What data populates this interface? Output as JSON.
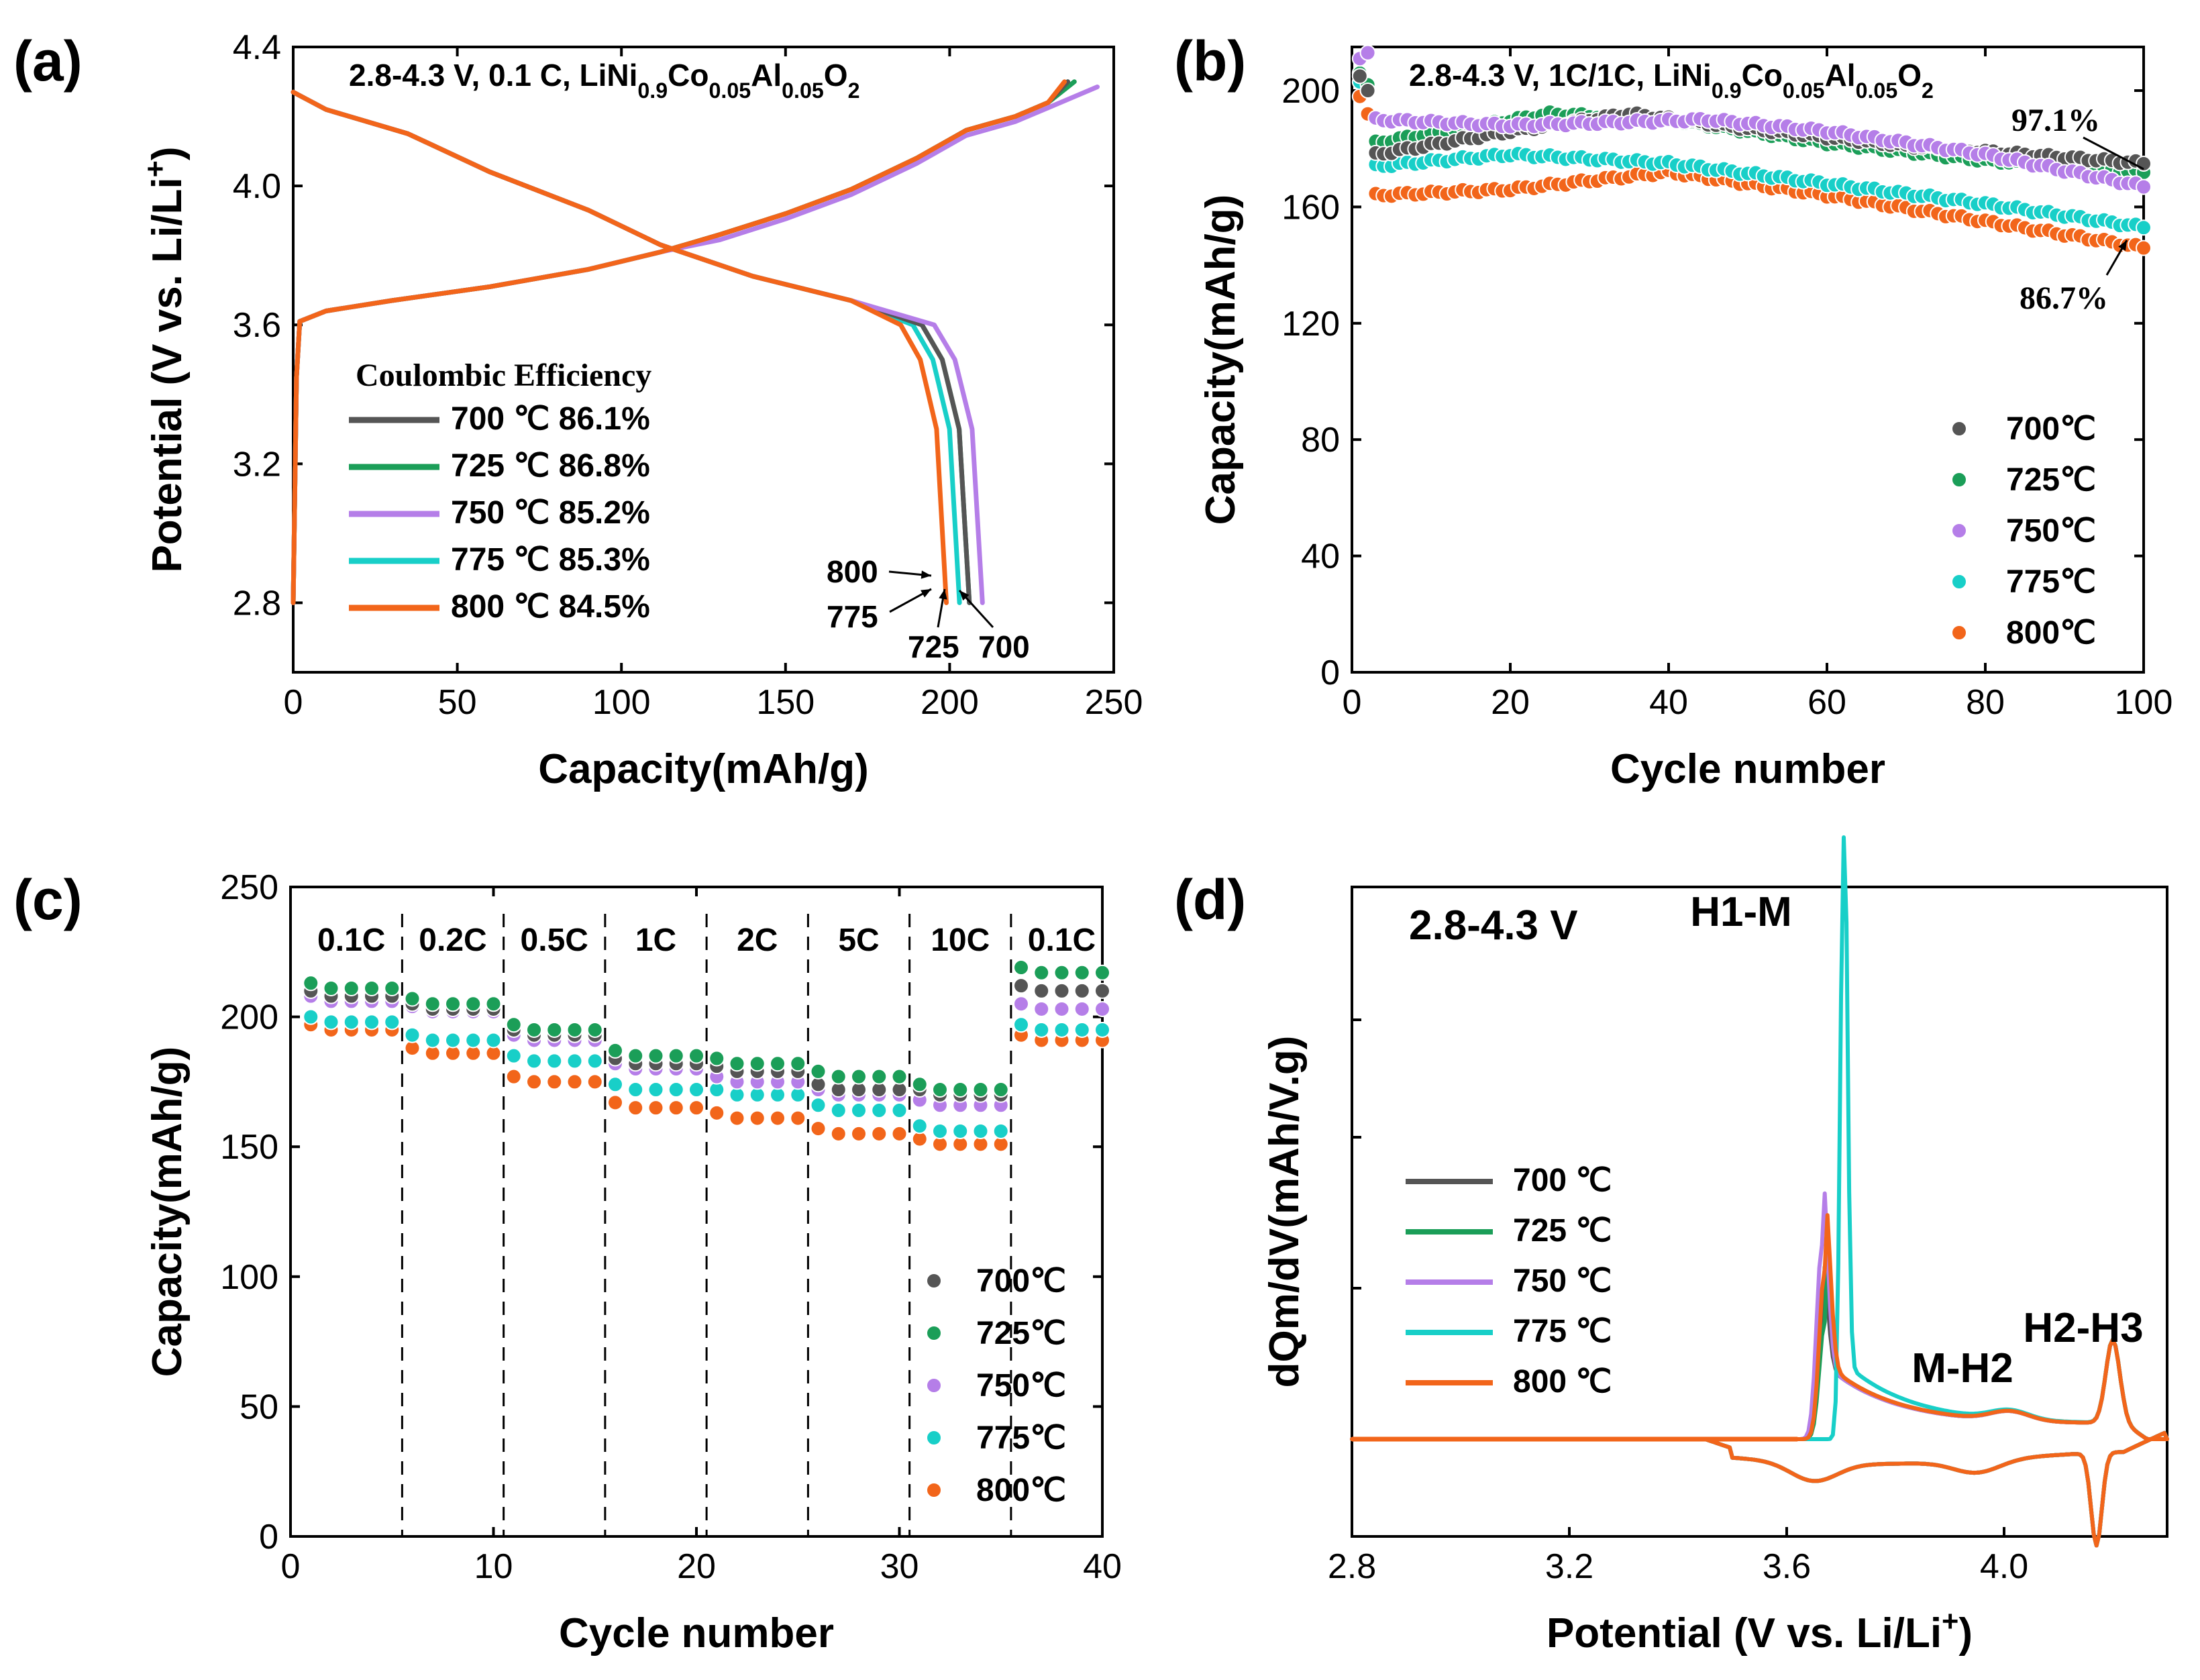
{
  "colors": {
    "700": "#555555",
    "725": "#1b9e58",
    "750": "#b57ee8",
    "775": "#18cfc8",
    "800": "#f2651a"
  },
  "chart_data": [
    {
      "panel": "(a)",
      "type": "line",
      "condition": "2.8-4.3 V, 0.1 C, LiNi0.9Co0.05Al0.05O2",
      "condition_parts": [
        "2.8-4.3 V, 0.1 C, LiNi",
        "0.9",
        "Co",
        "0.05",
        "Al",
        "0.05",
        "O",
        "2"
      ],
      "xlabel": "Capacity(mAh/g)",
      "ylabel": "Potential (V vs. Li/Li+)",
      "ylabel_parts": [
        "Potential (V vs. Li/Li",
        "+",
        ")"
      ],
      "xlim": [
        0,
        250
      ],
      "ylim": [
        2.6,
        4.4
      ],
      "xticks": [
        "0",
        "50",
        "100",
        "150",
        "200",
        "250"
      ],
      "yticks": [
        "2.8",
        "3.2",
        "3.6",
        "4.0",
        "4.4"
      ],
      "legend_title": "Coulombic Efficiency",
      "legend": [
        {
          "key": "700",
          "label": "700 ℃  86.1%"
        },
        {
          "key": "725",
          "label": "725 ℃  86.8%"
        },
        {
          "key": "750",
          "label": "750 ℃  85.2%"
        },
        {
          "key": "775",
          "label": "775 ℃  85.3%"
        },
        {
          "key": "800",
          "label": "800 ℃  84.5%"
        }
      ],
      "annotations": [
        "800",
        "775",
        "725",
        "700"
      ],
      "series": [
        {
          "key": "700",
          "charge_end": 236,
          "discharge_end": 206
        },
        {
          "key": "725",
          "charge_end": 238,
          "discharge_end": 206
        },
        {
          "key": "750",
          "charge_end": 245,
          "discharge_end": 210
        },
        {
          "key": "775",
          "charge_end": 236,
          "discharge_end": 203
        },
        {
          "key": "800",
          "charge_end": 235,
          "discharge_end": 199
        }
      ],
      "charge_curve": [
        [
          0,
          2.8
        ],
        [
          1,
          3.45
        ],
        [
          2,
          3.61
        ],
        [
          10,
          3.64
        ],
        [
          30,
          3.67
        ],
        [
          60,
          3.71
        ],
        [
          90,
          3.76
        ],
        [
          112,
          3.81
        ],
        [
          130,
          3.86
        ],
        [
          150,
          3.92
        ],
        [
          170,
          3.99
        ],
        [
          190,
          4.08
        ],
        [
          205,
          4.16
        ],
        [
          220,
          4.2
        ],
        [
          230,
          4.24
        ],
        [
          1.0,
          4.3
        ]
      ],
      "discharge_curve": [
        [
          0,
          4.27
        ],
        [
          10,
          4.22
        ],
        [
          35,
          4.15
        ],
        [
          60,
          4.04
        ],
        [
          90,
          3.93
        ],
        [
          112,
          3.83
        ],
        [
          140,
          3.74
        ],
        [
          170,
          3.67
        ],
        [
          0.93,
          3.6
        ],
        [
          0.96,
          3.5
        ],
        [
          0.985,
          3.3
        ],
        [
          1.0,
          2.8
        ]
      ]
    },
    {
      "panel": "(b)",
      "type": "scatter",
      "condition": "2.8-4.3 V, 1C/1C, LiNi0.9Co0.05Al0.05O2",
      "condition_parts": [
        "2.8-4.3 V, 1C/1C, LiNi",
        "0.9",
        "Co",
        "0.05",
        "Al",
        "0.05",
        "O",
        "2"
      ],
      "xlabel": "Cycle number",
      "ylabel": "Capacity(mAh/g)",
      "xlim": [
        0,
        100
      ],
      "ylim": [
        0,
        215
      ],
      "xticks": [
        "0",
        "20",
        "40",
        "60",
        "80",
        "100"
      ],
      "yticks": [
        "0",
        "40",
        "80",
        "120",
        "160",
        "200"
      ],
      "legend": [
        {
          "key": "700",
          "label": "700℃"
        },
        {
          "key": "725",
          "label": "725℃"
        },
        {
          "key": "750",
          "label": "750℃"
        },
        {
          "key": "775",
          "label": "775℃"
        },
        {
          "key": "800",
          "label": "800℃"
        }
      ],
      "annotations": [
        "97.1%",
        "86.7%"
      ],
      "series": [
        {
          "key": "700",
          "first": [
            205,
            200
          ],
          "points": [
            [
              3,
              178
            ],
            [
              20,
              186
            ],
            [
              35,
              192
            ],
            [
              50,
              187
            ],
            [
              70,
              181
            ],
            [
              85,
              178
            ],
            [
              100,
              175
            ]
          ]
        },
        {
          "key": "725",
          "first": [
            206,
            202
          ],
          "points": [
            [
              3,
              182
            ],
            [
              25,
              192
            ],
            [
              40,
              190
            ],
            [
              60,
              182
            ],
            [
              80,
              176
            ],
            [
              100,
              172
            ]
          ]
        },
        {
          "key": "750",
          "first": [
            211,
            213
          ],
          "points": [
            [
              3,
              190
            ],
            [
              20,
              188
            ],
            [
              45,
              190
            ],
            [
              60,
              186
            ],
            [
              80,
              178
            ],
            [
              100,
              167
            ]
          ]
        },
        {
          "key": "775",
          "first": [
            203,
            200
          ],
          "points": [
            [
              3,
              174
            ],
            [
              20,
              178
            ],
            [
              40,
              175
            ],
            [
              60,
              168
            ],
            [
              80,
              161
            ],
            [
              100,
              153
            ]
          ]
        },
        {
          "key": "800",
          "first": [
            198,
            192
          ],
          "points": [
            [
              3,
              164
            ],
            [
              20,
              166
            ],
            [
              40,
              172
            ],
            [
              60,
              164
            ],
            [
              80,
              155
            ],
            [
              100,
              146
            ]
          ]
        }
      ]
    },
    {
      "panel": "(c)",
      "type": "scatter",
      "xlabel": "Cycle number",
      "ylabel": "Capacity(mAh/g)",
      "xlim": [
        0,
        40
      ],
      "ylim": [
        0,
        250
      ],
      "xticks": [
        "0",
        "10",
        "20",
        "30",
        "40"
      ],
      "yticks": [
        "0",
        "50",
        "100",
        "150",
        "200",
        "250"
      ],
      "rates": [
        "0.1C",
        "0.2C",
        "0.5C",
        "1C",
        "2C",
        "5C",
        "10C",
        "0.1C"
      ],
      "dividers": [
        5.5,
        10.5,
        15.5,
        20.5,
        25.5,
        30.5,
        35.5
      ],
      "legend": [
        {
          "key": "700",
          "label": "700℃"
        },
        {
          "key": "725",
          "label": "725℃"
        },
        {
          "key": "750",
          "label": "750℃"
        },
        {
          "key": "775",
          "label": "775℃"
        },
        {
          "key": "800",
          "label": "800℃"
        }
      ],
      "series": [
        {
          "key": "800",
          "values": [
            195,
            186,
            175,
            165,
            161,
            155,
            151,
            191
          ]
        },
        {
          "key": "775",
          "values": [
            198,
            191,
            183,
            172,
            170,
            164,
            156,
            195
          ]
        },
        {
          "key": "750",
          "values": [
            206,
            202,
            191,
            180,
            175,
            170,
            166,
            203
          ]
        },
        {
          "key": "700",
          "values": [
            208,
            203,
            193,
            182,
            179,
            172,
            170,
            210
          ]
        },
        {
          "key": "725",
          "values": [
            211,
            205,
            195,
            185,
            182,
            177,
            172,
            217
          ]
        }
      ]
    },
    {
      "panel": "(d)",
      "type": "line",
      "condition": "2.8-4.3 V",
      "xlabel": "Potential (V vs. Li/Li+)",
      "xlabel_parts": [
        "Potential (V vs. Li/Li",
        "+",
        ")"
      ],
      "ylabel": "dQm/dV(mAh/V.g)",
      "xlim": [
        2.8,
        4.3
      ],
      "xticks": [
        "2.8",
        "3.2",
        "3.6",
        "4.0"
      ],
      "legend": [
        {
          "key": "700",
          "label": "700 ℃"
        },
        {
          "key": "725",
          "label": "725 ℃"
        },
        {
          "key": "750",
          "label": "750 ℃"
        },
        {
          "key": "775",
          "label": "775 ℃"
        },
        {
          "key": "800",
          "label": "800 ℃"
        }
      ],
      "peak_labels": [
        "H1-M",
        "M-H2",
        "H2-H3"
      ],
      "series": [
        {
          "key": "700",
          "peak_v": 3.665,
          "peak_h": 0.36
        },
        {
          "key": "725",
          "peak_v": 3.67,
          "peak_h": 0.38
        },
        {
          "key": "750",
          "peak_v": 3.665,
          "peak_h": 0.63
        },
        {
          "key": "775",
          "peak_v": 3.705,
          "peak_h": 1.95
        },
        {
          "key": "800",
          "peak_v": 3.67,
          "peak_h": 0.55
        }
      ]
    }
  ]
}
